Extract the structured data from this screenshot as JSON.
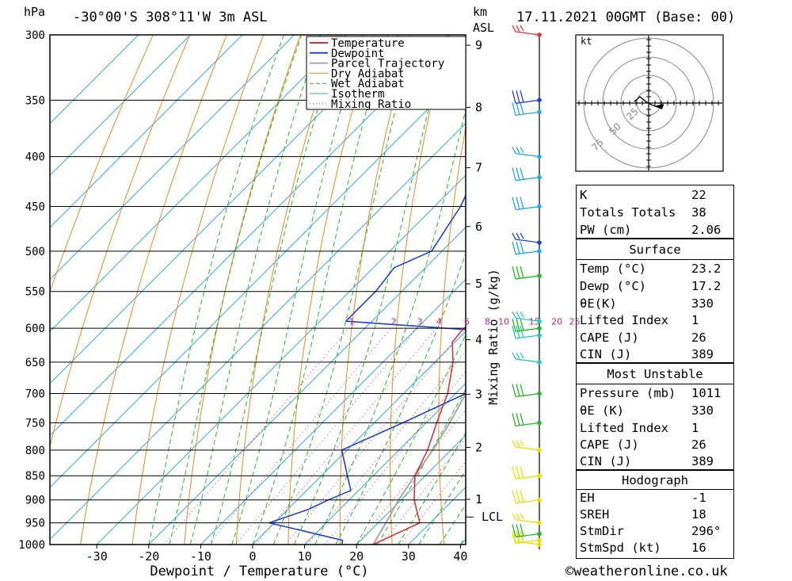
{
  "header": {
    "hpa_label": "hPa",
    "location": "-30°00'S 308°11'W 3m ASL",
    "km_label": "km",
    "asl_label": "ASL",
    "datetime": "17.11.2021 00GMT (Base: 00)"
  },
  "chart_data": {
    "type": "skew-t log-p",
    "xlabel": "Dewpoint / Temperature (°C)",
    "y_left_label": "hPa",
    "y_right_label_km": "km ASL",
    "mixing_ratio_axis_label": "Mixing Ratio (g/kg)",
    "pressure_ticks": [
      300,
      350,
      400,
      450,
      500,
      550,
      600,
      650,
      700,
      750,
      800,
      850,
      900,
      950,
      1000
    ],
    "temp_ticks": [
      -30,
      -20,
      -10,
      0,
      10,
      20,
      30,
      40
    ],
    "temp_range": [
      -40,
      40
    ],
    "pressure_range": [
      300,
      1000
    ],
    "km_ticks": [
      1,
      2,
      3,
      4,
      5,
      6,
      7,
      8,
      9
    ],
    "lcl_label": "LCL",
    "lcl_pressure": 937,
    "mixing_ratio_labels": [
      "1",
      "2",
      "3",
      "4",
      "6",
      "8",
      "10",
      "15",
      "20",
      "25"
    ],
    "legend": [
      "Temperature",
      "Dewpoint",
      "Parcel Trajectory",
      "Dry Adiabat",
      "Wet Adiabat",
      "Isotherm",
      "Mixing Ratio"
    ],
    "temperature": [
      [
        1000,
        23.2
      ],
      [
        950,
        28
      ],
      [
        900,
        22.5
      ],
      [
        850,
        18
      ],
      [
        800,
        15.5
      ],
      [
        750,
        12
      ],
      [
        700,
        8.5
      ],
      [
        650,
        3.5
      ],
      [
        620,
        -0.5
      ],
      [
        600,
        -1
      ],
      [
        590,
        1
      ],
      [
        580,
        2
      ],
      [
        550,
        -1
      ],
      [
        500,
        -7
      ],
      [
        450,
        -11.5
      ],
      [
        400,
        -18.5
      ],
      [
        350,
        -27
      ],
      [
        300,
        -35.5
      ]
    ],
    "dewpoint": [
      [
        1000,
        17.2
      ],
      [
        990,
        16.5
      ],
      [
        950,
        -1
      ],
      [
        920,
        4
      ],
      [
        900,
        6
      ],
      [
        880,
        8.5
      ],
      [
        850,
        5
      ],
      [
        800,
        -1
      ],
      [
        750,
        5.5
      ],
      [
        700,
        12
      ],
      [
        650,
        12
      ],
      [
        620,
        10
      ],
      [
        605,
        6
      ],
      [
        590,
        -25
      ],
      [
        550,
        -25
      ],
      [
        520,
        -26
      ],
      [
        500,
        -22
      ],
      [
        450,
        -25
      ],
      [
        420,
        -28
      ],
      [
        400,
        -26
      ],
      [
        350,
        -26
      ],
      [
        300,
        -25
      ]
    ],
    "parcel": [
      [
        1000,
        23.2
      ],
      [
        937,
        21
      ],
      [
        900,
        19.5
      ],
      [
        850,
        18
      ],
      [
        800,
        16.5
      ],
      [
        750,
        14.5
      ],
      [
        700,
        12
      ],
      [
        650,
        9
      ],
      [
        600,
        5.5
      ],
      [
        550,
        1.5
      ],
      [
        500,
        -3.5
      ],
      [
        450,
        -9.5
      ],
      [
        400,
        -16.5
      ],
      [
        350,
        -25
      ],
      [
        300,
        -35
      ]
    ],
    "colors": {
      "temperature": "#e03232",
      "dewpoint": "#2040d8",
      "parcel": "#a8a8a8",
      "dry_adiabat": "#ee8822",
      "wet_adiabat": "#22b822",
      "isotherm": "#30a8e8",
      "mixing_ratio": "#c02090"
    },
    "wind_barbs": [
      {
        "p": 1000,
        "color": "#e8e000"
      },
      {
        "p": 990,
        "color": "#e8e000"
      },
      {
        "p": 975,
        "color": "#22b822"
      },
      {
        "p": 950,
        "color": "#e8e000"
      },
      {
        "p": 900,
        "color": "#e8e000"
      },
      {
        "p": 850,
        "color": "#e8e000"
      },
      {
        "p": 800,
        "color": "#e8e000"
      },
      {
        "p": 750,
        "color": "#22b822"
      },
      {
        "p": 700,
        "color": "#22b822"
      },
      {
        "p": 650,
        "color": "#22c8c0"
      },
      {
        "p": 610,
        "color": "#22c8c0"
      },
      {
        "p": 600,
        "color": "#22b822"
      },
      {
        "p": 590,
        "color": "#22c8c0"
      },
      {
        "p": 530,
        "color": "#22b822"
      },
      {
        "p": 500,
        "color": "#22a8e8"
      },
      {
        "p": 490,
        "color": "#2040d8"
      },
      {
        "p": 450,
        "color": "#22a8e8"
      },
      {
        "p": 420,
        "color": "#22a8e8"
      },
      {
        "p": 400,
        "color": "#22a8e8"
      },
      {
        "p": 360,
        "color": "#22a8e8"
      },
      {
        "p": 350,
        "color": "#2040d8"
      },
      {
        "p": 300,
        "color": "#e03232"
      }
    ],
    "hodograph": {
      "unit_label": "kt",
      "ring_labels": [
        "25",
        "50",
        "75"
      ]
    }
  },
  "indices": {
    "k_label": "K",
    "k": "22",
    "tt_label": "Totals Totals",
    "tt": "38",
    "pw_label": "PW (cm)",
    "pw": "2.06",
    "surface_title": "Surface",
    "temp_label": "Temp (°C)",
    "temp": "23.2",
    "dewp_label": "Dewp (°C)",
    "dewp": "17.2",
    "theta_label": "θE(K)",
    "theta": "330",
    "li_label": "Lifted Index",
    "li": "1",
    "cape_label": "CAPE (J)",
    "cape": "26",
    "cin_label": "CIN (J)",
    "cin": "389",
    "mu_title": "Most Unstable",
    "mu_p_label": "Pressure (mb)",
    "mu_p": "1011",
    "mu_theta_label": "θE (K)",
    "mu_theta": "330",
    "mu_li_label": "Lifted Index",
    "mu_li": "1",
    "mu_cape_label": "CAPE (J)",
    "mu_cape": "26",
    "mu_cin_label": "CIN (J)",
    "mu_cin": "389",
    "hodo_title": "Hodograph",
    "eh_label": "EH",
    "eh": "-1",
    "sreh_label": "SREH",
    "sreh": "18",
    "stmdir_label": "StmDir",
    "stmdir": "296°",
    "stmspd_label": "StmSpd (kt)",
    "stmspd": "16"
  },
  "footer": {
    "copyright": "©weatheronline.co.uk"
  }
}
